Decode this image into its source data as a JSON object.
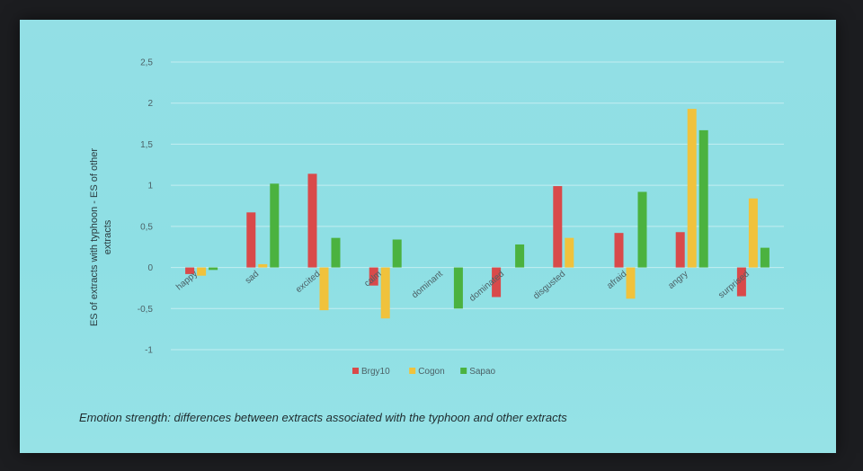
{
  "caption": "Emotion strength: differences between extracts associated with the typhoon and other extracts",
  "chart_data": {
    "type": "bar",
    "title": "",
    "xlabel": "",
    "ylabel": [
      "ES of extracts with typhoon - ES of other",
      "extracts"
    ],
    "ylim": [
      -1,
      2.5
    ],
    "yticks": [
      "2,5",
      "2",
      "1,5",
      "1",
      "0,5",
      "0",
      "-0,5",
      "-1"
    ],
    "ytick_values": [
      2.5,
      2,
      1.5,
      1,
      0.5,
      0,
      -0.5,
      -1
    ],
    "grid": true,
    "legend_position": "bottom",
    "categories": [
      "happy",
      "sad",
      "excited",
      "calm",
      "dominant",
      "dominated",
      "disgusted",
      "afraid",
      "angry",
      "surprised"
    ],
    "series": [
      {
        "name": "Brgy10",
        "color": "#d94a4a",
        "values": [
          -0.08,
          0.67,
          1.14,
          -0.22,
          0.0,
          -0.36,
          0.99,
          0.42,
          0.43,
          -0.35
        ]
      },
      {
        "name": "Cogon",
        "color": "#f0c23c",
        "values": [
          -0.1,
          0.04,
          -0.52,
          -0.62,
          0.0,
          0.0,
          0.36,
          -0.38,
          1.93,
          0.84
        ]
      },
      {
        "name": "Sapao",
        "color": "#4bb23f",
        "values": [
          -0.03,
          1.02,
          0.36,
          0.34,
          -0.5,
          0.28,
          0.0,
          0.92,
          1.67,
          0.24
        ]
      }
    ]
  }
}
